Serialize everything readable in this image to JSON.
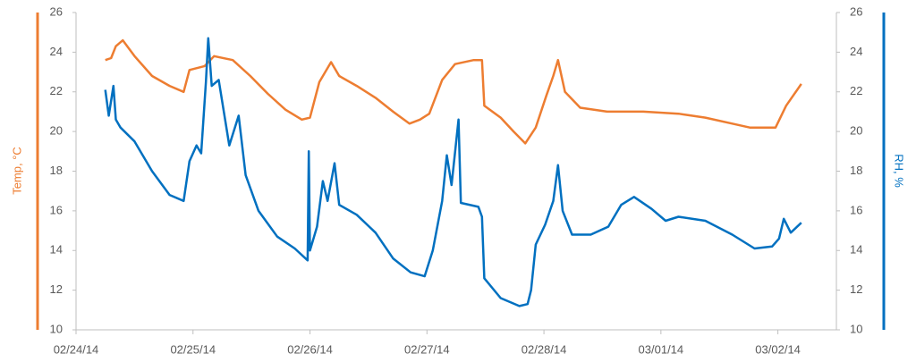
{
  "chart_data": {
    "type": "line",
    "y_label": "Temp, °C",
    "y2_label": "RH, %",
    "xlim": [
      0,
      6.5
    ],
    "xticks": [
      {
        "value": 0,
        "label": "02/24/14"
      },
      {
        "value": 1,
        "label": "02/25/14"
      },
      {
        "value": 2,
        "label": "02/26/14"
      },
      {
        "value": 3,
        "label": "02/27/14"
      },
      {
        "value": 4,
        "label": "02/28/14"
      },
      {
        "value": 5,
        "label": "03/01/14"
      },
      {
        "value": 6,
        "label": "03/02/14"
      }
    ],
    "ylim": [
      10,
      26
    ],
    "yticks": [
      10,
      12,
      14,
      16,
      18,
      20,
      22,
      24,
      26
    ],
    "y2lim": [
      10,
      26
    ],
    "y2ticks": [
      10,
      12,
      14,
      16,
      18,
      20,
      22,
      24,
      26
    ],
    "y_color": "#ed7d31",
    "y2_color": "#0070c0",
    "series": [
      {
        "name": "Temp",
        "color": "#ed7d31",
        "x": [
          0.25,
          0.3,
          0.34,
          0.4,
          0.5,
          0.65,
          0.8,
          0.92,
          0.97,
          1.1,
          1.18,
          1.34,
          1.49,
          1.64,
          1.79,
          1.93,
          2.0,
          2.08,
          2.18,
          2.25,
          2.4,
          2.56,
          2.71,
          2.85,
          2.94,
          3.02,
          3.13,
          3.24,
          3.4,
          3.47,
          3.49,
          3.63,
          3.74,
          3.84,
          3.93,
          4.02,
          4.08,
          4.12,
          4.18,
          4.31,
          4.54,
          4.85,
          5.15,
          5.38,
          5.61,
          5.76,
          5.98,
          6.07,
          6.2
        ],
        "values": [
          23.6,
          23.7,
          24.3,
          24.6,
          23.8,
          22.8,
          22.3,
          22.0,
          23.1,
          23.3,
          23.8,
          23.6,
          22.8,
          21.9,
          21.1,
          20.6,
          20.7,
          22.5,
          23.5,
          22.8,
          22.3,
          21.7,
          21.0,
          20.4,
          20.6,
          20.9,
          22.6,
          23.4,
          23.6,
          23.6,
          21.3,
          20.7,
          20.0,
          19.4,
          20.2,
          21.8,
          22.8,
          23.6,
          22.0,
          21.2,
          21.0,
          21.0,
          20.9,
          20.7,
          20.4,
          20.2,
          20.2,
          21.3,
          22.4
        ]
      },
      {
        "name": "RH",
        "color": "#0070c0",
        "axis": "y2",
        "x": [
          0.25,
          0.28,
          0.32,
          0.34,
          0.38,
          0.5,
          0.65,
          0.8,
          0.92,
          0.97,
          1.03,
          1.07,
          1.11,
          1.13,
          1.16,
          1.22,
          1.31,
          1.39,
          1.45,
          1.56,
          1.72,
          1.87,
          1.98,
          1.99,
          2.0,
          2.06,
          2.11,
          2.15,
          2.21,
          2.25,
          2.4,
          2.56,
          2.71,
          2.86,
          2.98,
          3.05,
          3.13,
          3.17,
          3.21,
          3.27,
          3.29,
          3.44,
          3.47,
          3.49,
          3.63,
          3.79,
          3.86,
          3.89,
          3.93,
          4.01,
          4.08,
          4.12,
          4.16,
          4.24,
          4.4,
          4.55,
          4.66,
          4.77,
          4.92,
          5.04,
          5.15,
          5.38,
          5.61,
          5.8,
          5.95,
          6.01,
          6.05,
          6.11,
          6.2
        ],
        "values": [
          22.1,
          20.8,
          22.3,
          20.6,
          20.2,
          19.5,
          18.0,
          16.8,
          16.5,
          18.5,
          19.3,
          18.9,
          22.5,
          24.7,
          22.3,
          22.6,
          19.3,
          20.8,
          17.8,
          16.0,
          14.7,
          14.1,
          13.5,
          19.0,
          14.0,
          15.2,
          17.5,
          16.5,
          18.4,
          16.3,
          15.8,
          14.9,
          13.6,
          12.9,
          12.7,
          14.0,
          16.5,
          18.8,
          17.3,
          20.6,
          16.4,
          16.2,
          15.7,
          12.6,
          11.6,
          11.2,
          11.3,
          12.0,
          14.3,
          15.3,
          16.5,
          18.3,
          16.0,
          14.8,
          14.8,
          15.2,
          16.3,
          16.7,
          16.1,
          15.5,
          15.7,
          15.5,
          14.8,
          14.1,
          14.2,
          14.6,
          15.6,
          14.9,
          15.4
        ]
      }
    ]
  }
}
